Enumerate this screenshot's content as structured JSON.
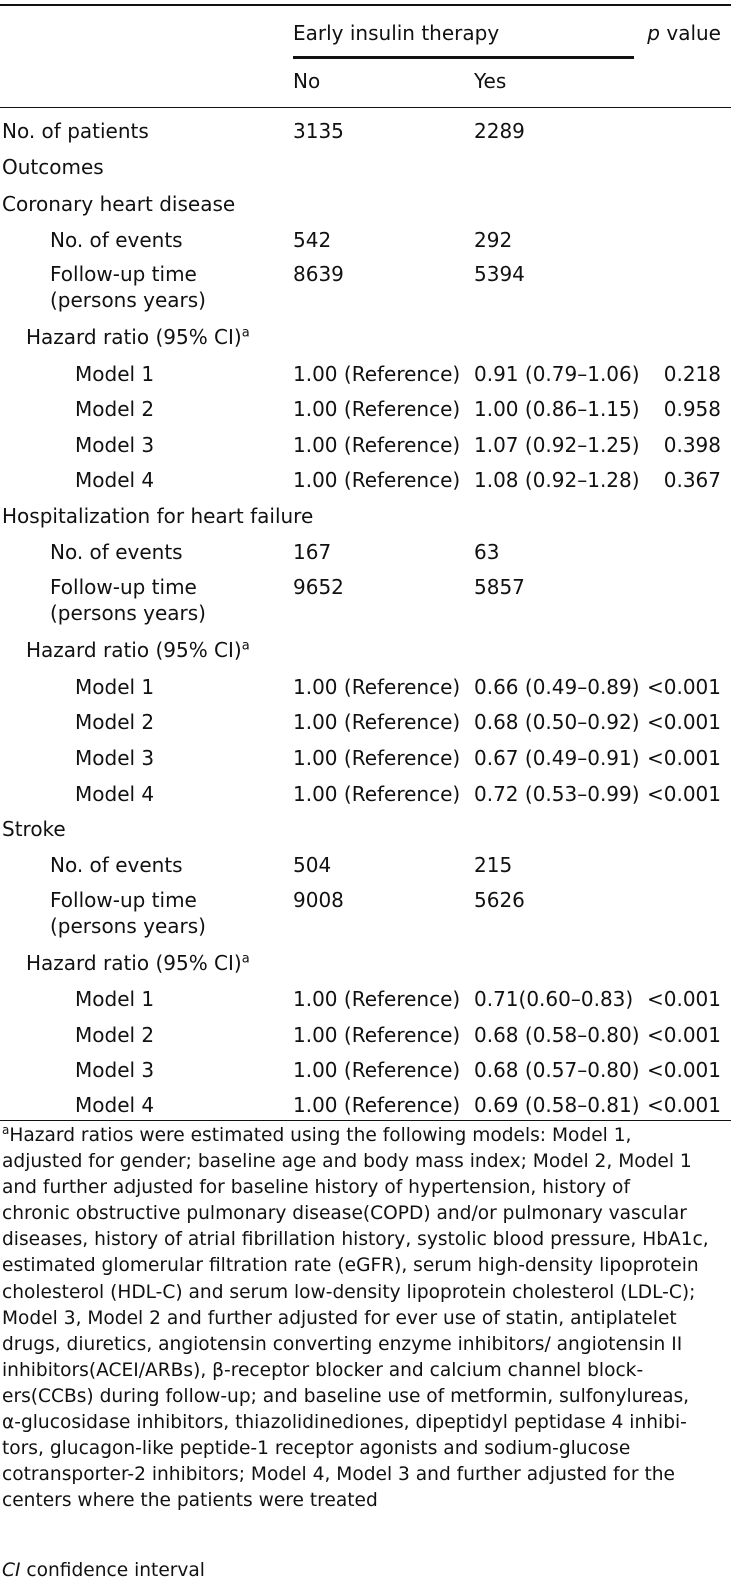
{
  "header": {
    "span_label": "Early insulin therapy",
    "p_label_italic": "p",
    "p_label_rest": " value",
    "col_no": "No",
    "col_yes": "Yes"
  },
  "rows": {
    "patients": {
      "label": "No. of patients",
      "no": "3135",
      "yes": "2289"
    },
    "outcomes": {
      "label": "Outcomes"
    },
    "chd": {
      "label": "Coronary heart disease",
      "events": {
        "label": "No. of events",
        "no": "542",
        "yes": "292"
      },
      "followup": {
        "label1": "Follow-up time",
        "label2": "(persons years)",
        "no": "8639",
        "yes": "5394"
      },
      "hr_label": "Hazard ratio (95% CI)",
      "hr_sup": "a",
      "models": [
        {
          "label": "Model 1",
          "no": "1.00 (Reference)",
          "yes": "0.91 (0.79–1.06)",
          "p": "0.218"
        },
        {
          "label": "Model 2",
          "no": "1.00 (Reference)",
          "yes": "1.00 (0.86–1.15)",
          "p": "0.958"
        },
        {
          "label": "Model 3",
          "no": "1.00 (Reference)",
          "yes": "1.07 (0.92–1.25)",
          "p": "0.398"
        },
        {
          "label": "Model 4",
          "no": "1.00 (Reference)",
          "yes": "1.08 (0.92–1.28)",
          "p": "0.367"
        }
      ]
    },
    "hf": {
      "label": "Hospitalization for heart failure",
      "events": {
        "label": "No. of events",
        "no": "167",
        "yes": "63"
      },
      "followup": {
        "label1": "Follow-up time",
        "label2": "(persons years)",
        "no": "9652",
        "yes": "5857"
      },
      "hr_label": "Hazard ratio (95% CI)",
      "hr_sup": "a",
      "models": [
        {
          "label": "Model 1",
          "no": "1.00 (Reference)",
          "yes": "0.66 (0.49–0.89)",
          "p": "<0.001"
        },
        {
          "label": "Model 2",
          "no": "1.00 (Reference)",
          "yes": "0.68 (0.50–0.92)",
          "p": "<0.001"
        },
        {
          "label": "Model 3",
          "no": "1.00 (Reference)",
          "yes": "0.67 (0.49–0.91)",
          "p": "<0.001"
        },
        {
          "label": "Model 4",
          "no": "1.00 (Reference)",
          "yes": "0.72 (0.53–0.99)",
          "p": "<0.001"
        }
      ]
    },
    "stroke": {
      "label": "Stroke",
      "events": {
        "label": "No. of events",
        "no": "504",
        "yes": "215"
      },
      "followup": {
        "label1": "Follow-up time",
        "label2": "(persons years)",
        "no": "9008",
        "yes": "5626"
      },
      "hr_label": "Hazard ratio (95% CI)",
      "hr_sup": "a",
      "models": [
        {
          "label": "Model 1",
          "no": "1.00 (Reference)",
          "yes": "0.71(0.60–0.83)",
          "p": "<0.001"
        },
        {
          "label": "Model 2",
          "no": "1.00 (Reference)",
          "yes": "0.68 (0.58–0.80)",
          "p": "<0.001"
        },
        {
          "label": "Model 3",
          "no": "1.00 (Reference)",
          "yes": "0.68 (0.57–0.80)",
          "p": "<0.001"
        },
        {
          "label": "Model 4",
          "no": "1.00 (Reference)",
          "yes": "0.69 (0.58–0.81)",
          "p": "<0.001"
        }
      ]
    }
  },
  "footnote": {
    "sup": "a",
    "lines": [
      "Hazard ratios were estimated using the following models: Model 1,",
      "adjusted for gender; baseline age and body mass index; Model 2, Model 1",
      "and further adjusted for baseline history of hypertension, history of",
      "chronic obstructive pulmonary disease(COPD) and/or pulmonary vascular",
      "diseases, history of atrial fibrillation history, systolic blood pressure, HbA1c,",
      "estimated glomerular filtration rate (eGFR), serum high-density lipoprotein",
      "cholesterol (HDL-C) and serum low-density lipoprotein cholesterol (LDL-C);",
      "Model 3, Model 2 and further adjusted for ever use of statin, antiplatelet",
      "drugs, diuretics, angiotensin converting enzyme inhibitors/ angiotensin II",
      "inhibitors(ACEI/ARBs), β-receptor blocker and calcium channel block-",
      "ers(CCBs) during follow-up; and baseline use of metformin, sulfonylureas,",
      "α-glucosidase inhibitors, thiazolidinediones, dipeptidyl peptidase 4 inhibi-",
      "tors, glucagon-like peptide-1 receptor agonists and sodium-glucose",
      "cotransporter-2 inhibitors; Model 4, Model 3 and further adjusted for the",
      "centers where the patients were treated"
    ],
    "ci_abbr": "CI",
    "ci_text": " confidence interval"
  }
}
